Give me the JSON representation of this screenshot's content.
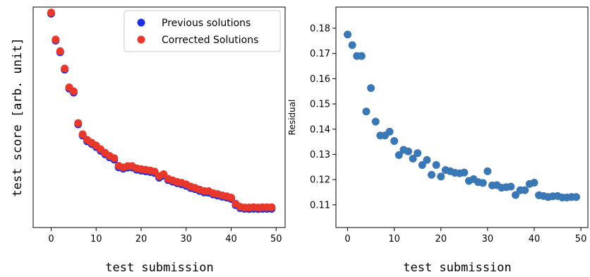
{
  "chart_data": [
    {
      "type": "scatter",
      "xlabel": "test submission",
      "ylabel": "test score [arb. unit]",
      "xlim": [
        -4,
        52
      ],
      "ylim": [
        0,
        1
      ],
      "x_ticks": [
        0,
        10,
        20,
        30,
        40,
        50
      ],
      "y_ticks_shown": false,
      "grid": false,
      "legend": "top-right",
      "series": [
        {
          "name": "Previous solutions",
          "color": "#1f2fe0",
          "x": [
            0,
            1,
            2,
            3,
            4,
            5,
            6,
            7,
            8,
            9,
            10,
            11,
            12,
            13,
            14,
            15,
            16,
            17,
            18,
            19,
            20,
            21,
            22,
            23,
            24,
            25,
            26,
            27,
            28,
            29,
            30,
            31,
            32,
            33,
            34,
            35,
            36,
            37,
            38,
            39,
            40,
            41,
            42,
            43,
            44,
            45,
            46,
            47,
            48,
            49
          ],
          "y": [
            0.97,
            0.848,
            0.795,
            0.716,
            0.63,
            0.612,
            0.468,
            0.417,
            0.391,
            0.379,
            0.365,
            0.348,
            0.332,
            0.318,
            0.308,
            0.273,
            0.267,
            0.272,
            0.272,
            0.262,
            0.258,
            0.255,
            0.252,
            0.247,
            0.226,
            0.235,
            0.215,
            0.208,
            0.201,
            0.196,
            0.189,
            0.179,
            0.174,
            0.166,
            0.159,
            0.158,
            0.15,
            0.145,
            0.14,
            0.136,
            0.13,
            0.102,
            0.088,
            0.085,
            0.084,
            0.085,
            0.084,
            0.085,
            0.085,
            0.085
          ]
        },
        {
          "name": "Corrected Solutions",
          "color": "#e8372b",
          "x": [
            0,
            1,
            2,
            3,
            4,
            5,
            6,
            7,
            8,
            9,
            10,
            11,
            12,
            13,
            14,
            15,
            16,
            17,
            18,
            19,
            20,
            21,
            22,
            23,
            24,
            25,
            26,
            27,
            28,
            29,
            30,
            31,
            32,
            33,
            34,
            35,
            36,
            37,
            38,
            39,
            40,
            41,
            42,
            43,
            44,
            45,
            46,
            47,
            48,
            49
          ],
          "y": [
            0.975,
            0.853,
            0.8,
            0.721,
            0.636,
            0.618,
            0.474,
            0.423,
            0.398,
            0.385,
            0.372,
            0.355,
            0.339,
            0.325,
            0.315,
            0.28,
            0.273,
            0.279,
            0.279,
            0.269,
            0.265,
            0.262,
            0.259,
            0.254,
            0.233,
            0.242,
            0.221,
            0.214,
            0.207,
            0.203,
            0.196,
            0.186,
            0.18,
            0.172,
            0.166,
            0.165,
            0.156,
            0.152,
            0.146,
            0.142,
            0.136,
            0.108,
            0.094,
            0.091,
            0.091,
            0.092,
            0.091,
            0.092,
            0.092,
            0.092
          ]
        }
      ]
    },
    {
      "type": "scatter",
      "xlabel": "test submission",
      "ylabel": "Residual",
      "xlim": [
        -2.5,
        51.5
      ],
      "ylim": [
        0.101,
        0.1884
      ],
      "x_ticks": [
        0,
        10,
        20,
        30,
        40,
        50
      ],
      "y_ticks": [
        0.11,
        0.12,
        0.13,
        0.14,
        0.15,
        0.16,
        0.17,
        0.18
      ],
      "grid": false,
      "series": [
        {
          "color": "#3a77b5",
          "x": [
            0,
            1,
            2,
            3,
            4,
            5,
            6,
            7,
            8,
            9,
            10,
            11,
            12,
            13,
            14,
            15,
            16,
            17,
            18,
            19,
            20,
            21,
            22,
            23,
            24,
            25,
            26,
            27,
            28,
            29,
            30,
            31,
            32,
            33,
            34,
            35,
            36,
            37,
            38,
            39,
            40,
            41,
            42,
            43,
            44,
            45,
            46,
            47,
            48,
            49
          ],
          "y": [
            0.1775,
            0.1733,
            0.169,
            0.169,
            0.147,
            0.1563,
            0.143,
            0.1375,
            0.1375,
            0.139,
            0.1353,
            0.1297,
            0.1318,
            0.1312,
            0.1283,
            0.1305,
            0.1258,
            0.1278,
            0.1219,
            0.1258,
            0.1212,
            0.1238,
            0.1233,
            0.1227,
            0.1225,
            0.1228,
            0.1195,
            0.1202,
            0.119,
            0.1187,
            0.1233,
            0.1177,
            0.1178,
            0.1168,
            0.117,
            0.1172,
            0.1139,
            0.1158,
            0.1158,
            0.1183,
            0.1188,
            0.1138,
            0.1135,
            0.1131,
            0.1134,
            0.1135,
            0.1129,
            0.1129,
            0.1131,
            0.1131
          ]
        }
      ]
    }
  ]
}
